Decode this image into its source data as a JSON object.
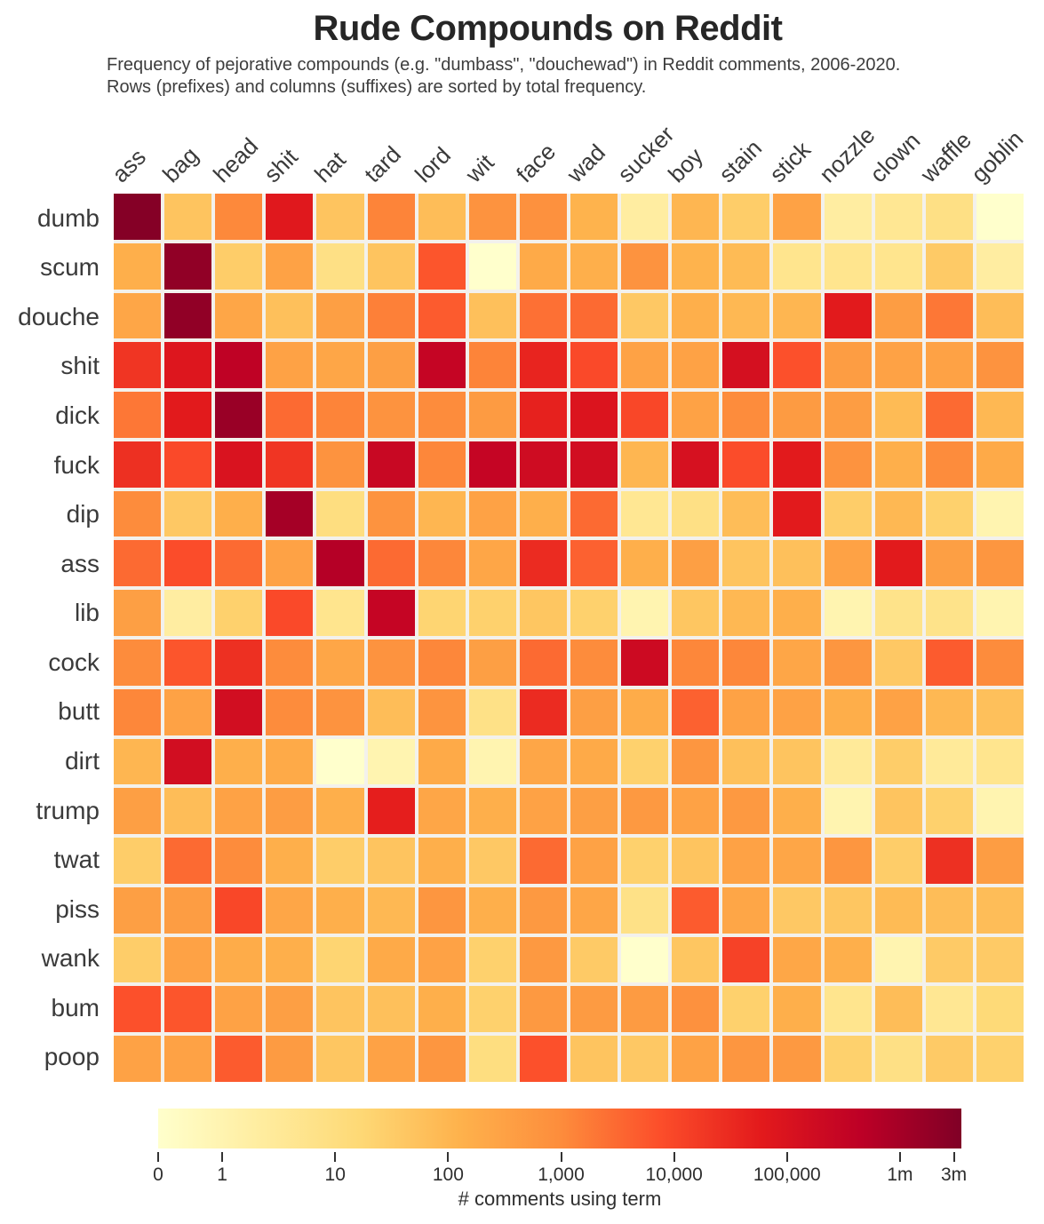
{
  "title": "Rude Compounds on Reddit",
  "subtitle": {
    "line1": "Frequency of pejorative compounds (e.g. \"dumbass\", \"douchewad\") in Reddit comments, 2006-2020.",
    "line2": "Rows (prefixes) and columns (suffixes) are sorted by total frequency."
  },
  "colorbar": {
    "label": "# comments using term",
    "colormap": "YlOrRd",
    "stops": [
      [
        0,
        "#ffffcc"
      ],
      [
        0.125,
        "#ffeda0"
      ],
      [
        0.25,
        "#fed976"
      ],
      [
        0.375,
        "#feb24c"
      ],
      [
        0.5,
        "#fd8d3c"
      ],
      [
        0.625,
        "#fc4e2a"
      ],
      [
        0.75,
        "#e31a1c"
      ],
      [
        0.875,
        "#bd0026"
      ],
      [
        1,
        "#800026"
      ]
    ],
    "ticks": [
      {
        "value": 0,
        "label": "0"
      },
      {
        "value": 1,
        "label": "1"
      },
      {
        "value": 10,
        "label": "10"
      },
      {
        "value": 100,
        "label": "100"
      },
      {
        "value": 1000,
        "label": "1,000"
      },
      {
        "value": 10000,
        "label": "10,000"
      },
      {
        "value": 100000,
        "label": "100,000"
      },
      {
        "value": 1000000,
        "label": "1m"
      },
      {
        "value": 3000000,
        "label": "3m"
      }
    ]
  },
  "chart_data": {
    "type": "heatmap",
    "unit": "comments using term",
    "scale": "log",
    "domain": [
      0,
      3000000
    ],
    "rows": [
      "dumb",
      "scum",
      "douche",
      "shit",
      "dick",
      "fuck",
      "dip",
      "ass",
      "lib",
      "cock",
      "butt",
      "dirt",
      "trump",
      "twat",
      "piss",
      "wank",
      "bum",
      "poop"
    ],
    "columns": [
      "ass",
      "bag",
      "head",
      "shit",
      "hat",
      "tard",
      "lord",
      "wit",
      "face",
      "wad",
      "sucker",
      "boy",
      "stain",
      "stick",
      "nozzle",
      "clown",
      "waffle",
      "goblin"
    ],
    "values": [
      [
        3000000,
        50,
        1100,
        70000,
        50,
        1300,
        70,
        700,
        800,
        120,
        2,
        100,
        30,
        300,
        2,
        4,
        8,
        0
      ],
      [
        150,
        2000000,
        30,
        300,
        8,
        50,
        6000,
        0,
        200,
        150,
        700,
        120,
        80,
        5,
        5,
        5,
        35,
        2
      ],
      [
        250,
        2000000,
        250,
        60,
        350,
        1500,
        5000,
        60,
        2500,
        3000,
        40,
        150,
        90,
        100,
        60000,
        400,
        2000,
        70
      ],
      [
        20000,
        80000,
        400000,
        300,
        250,
        350,
        300000,
        1300,
        40000,
        9000,
        300,
        300,
        130000,
        7000,
        400,
        300,
        300,
        700
      ],
      [
        2000,
        60000,
        1500000,
        3000,
        1300,
        700,
        1000,
        450,
        45000,
        90000,
        10000,
        300,
        1000,
        450,
        400,
        80,
        3000,
        90
      ],
      [
        25000,
        9000,
        100000,
        20000,
        700,
        250000,
        1200,
        300000,
        180000,
        150000,
        100,
        120000,
        8000,
        60000,
        700,
        150,
        1000,
        200
      ],
      [
        1000,
        40,
        150,
        1000000,
        10,
        700,
        100,
        300,
        150,
        3000,
        4,
        8,
        70,
        60000,
        30,
        90,
        25,
        1
      ],
      [
        3000,
        8000,
        3000,
        300,
        600000,
        3000,
        1200,
        250,
        30000,
        4000,
        150,
        350,
        50,
        60,
        300,
        60000,
        350,
        600
      ],
      [
        350,
        2,
        25,
        9000,
        5,
        300000,
        20,
        25,
        45,
        25,
        1,
        45,
        90,
        150,
        1,
        6,
        6,
        1
      ],
      [
        1000,
        6000,
        25000,
        1000,
        250,
        700,
        1200,
        350,
        3000,
        1000,
        200000,
        1200,
        1200,
        250,
        600,
        40,
        5000,
        1000
      ],
      [
        1200,
        300,
        150000,
        1000,
        700,
        70,
        650,
        7,
        30000,
        350,
        180,
        4000,
        300,
        300,
        160,
        300,
        90,
        60
      ],
      [
        100,
        150000,
        150,
        200,
        0,
        1,
        200,
        1,
        250,
        200,
        25,
        600,
        60,
        50,
        3,
        30,
        3,
        5
      ],
      [
        350,
        70,
        300,
        400,
        150,
        50000,
        250,
        150,
        300,
        350,
        500,
        300,
        500,
        150,
        1,
        50,
        25,
        1
      ],
      [
        30,
        3000,
        1000,
        150,
        30,
        50,
        150,
        40,
        3000,
        300,
        25,
        50,
        300,
        250,
        600,
        30,
        25000,
        400
      ],
      [
        350,
        400,
        10000,
        250,
        150,
        90,
        600,
        150,
        500,
        250,
        7,
        5000,
        250,
        40,
        45,
        80,
        70,
        70
      ],
      [
        30,
        300,
        180,
        150,
        20,
        200,
        300,
        25,
        500,
        35,
        0,
        45,
        12000,
        230,
        150,
        1,
        35,
        35
      ],
      [
        7000,
        6000,
        300,
        350,
        50,
        60,
        150,
        25,
        500,
        450,
        450,
        800,
        25,
        150,
        5,
        70,
        4,
        15
      ],
      [
        300,
        300,
        5000,
        450,
        45,
        300,
        600,
        10,
        7000,
        50,
        40,
        300,
        600,
        500,
        25,
        8,
        35,
        25
      ]
    ]
  }
}
